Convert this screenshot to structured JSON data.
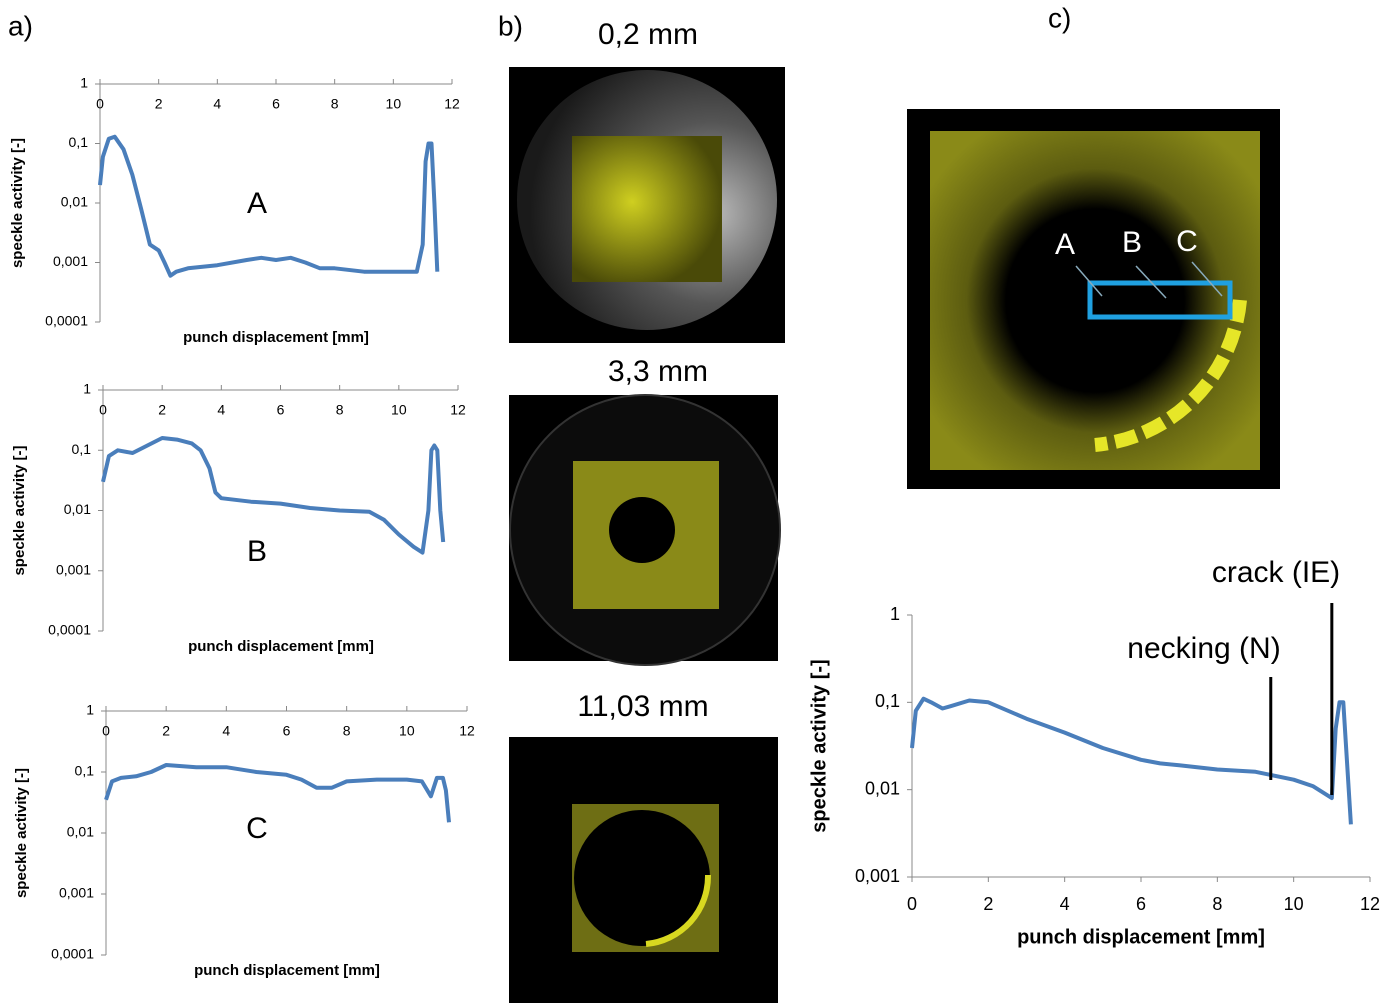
{
  "panel_labels": [
    "a)",
    "b)",
    "c)"
  ],
  "images": [
    {
      "title": "0,2 mm"
    },
    {
      "title": "3,3 mm"
    },
    {
      "title": "11,03 mm"
    }
  ],
  "overlay": {
    "labels": [
      "A",
      "B",
      "C"
    ]
  },
  "chart_data": [
    {
      "type": "line",
      "log_y": true,
      "xaxis_position": "top",
      "annotation": "A",
      "xlabel": "punch displacement [mm]",
      "ylabel": "speckle activity [-]",
      "x": [
        0,
        0.1,
        0.3,
        0.5,
        0.8,
        1.1,
        1.4,
        1.7,
        2.0,
        2.2,
        2.4,
        2.6,
        3,
        4,
        5,
        5.5,
        6,
        6.5,
        7,
        7.5,
        8,
        9,
        10,
        10.8,
        11,
        11.1,
        11.2,
        11.3,
        11.4,
        11.5
      ],
      "series": [
        {
          "color": "#4a7ebb",
          "values": [
            0.02,
            0.06,
            0.12,
            0.13,
            0.08,
            0.03,
            0.008,
            0.002,
            0.0016,
            0.001,
            0.0006,
            0.0007,
            0.0008,
            0.0009,
            0.0011,
            0.0012,
            0.0011,
            0.0012,
            0.001,
            0.0008,
            0.0008,
            0.0007,
            0.0007,
            0.0007,
            0.002,
            0.05,
            0.1,
            0.1,
            0.01,
            0.0007
          ]
        }
      ],
      "xlim": [
        0,
        12
      ],
      "xticks": [
        0,
        2,
        4,
        6,
        8,
        10,
        12
      ],
      "ylim": [
        0.0001,
        1
      ],
      "yticks": [
        {
          "value": 0.0001,
          "label": "0,0001"
        },
        {
          "value": 0.001,
          "label": "0,001"
        },
        {
          "value": 0.01,
          "label": "0,01"
        },
        {
          "value": 0.1,
          "label": "0,1"
        },
        1
      ]
    },
    {
      "type": "line",
      "log_y": true,
      "xaxis_position": "top",
      "annotation": "B",
      "xlabel": "punch displacement [mm]",
      "ylabel": "speckle activity [-]",
      "x": [
        0,
        0.2,
        0.5,
        1,
        1.5,
        2,
        2.5,
        3,
        3.3,
        3.6,
        3.8,
        4,
        5,
        6,
        7,
        8,
        9,
        9.5,
        10,
        10.5,
        10.8,
        11,
        11.1,
        11.2,
        11.3,
        11.4,
        11.5
      ],
      "series": [
        {
          "color": "#4a7ebb",
          "values": [
            0.03,
            0.08,
            0.1,
            0.09,
            0.12,
            0.16,
            0.15,
            0.13,
            0.1,
            0.05,
            0.02,
            0.016,
            0.014,
            0.013,
            0.011,
            0.01,
            0.0095,
            0.007,
            0.004,
            0.0025,
            0.002,
            0.01,
            0.1,
            0.12,
            0.1,
            0.01,
            0.003
          ]
        }
      ],
      "xlim": [
        0,
        12
      ],
      "xticks": [
        0,
        2,
        4,
        6,
        8,
        10,
        12
      ],
      "ylim": [
        0.0001,
        1
      ],
      "yticks": [
        {
          "value": 0.0001,
          "label": "0,0001"
        },
        {
          "value": 0.001,
          "label": "0,001"
        },
        {
          "value": 0.01,
          "label": "0,01"
        },
        {
          "value": 0.1,
          "label": "0,1"
        },
        1
      ]
    },
    {
      "type": "line",
      "log_y": true,
      "xaxis_position": "top",
      "annotation": "C",
      "xlabel": "punch displacement [mm]",
      "ylabel": "speckle activity [-]",
      "x": [
        0,
        0.2,
        0.5,
        1,
        1.5,
        2,
        3,
        4,
        5,
        6,
        6.5,
        7,
        7.5,
        8,
        9,
        10,
        10.5,
        10.8,
        11,
        11.2,
        11.3,
        11.4
      ],
      "series": [
        {
          "color": "#4a7ebb",
          "values": [
            0.035,
            0.07,
            0.08,
            0.085,
            0.1,
            0.13,
            0.12,
            0.12,
            0.1,
            0.09,
            0.075,
            0.055,
            0.055,
            0.07,
            0.075,
            0.075,
            0.07,
            0.04,
            0.08,
            0.08,
            0.05,
            0.015
          ]
        }
      ],
      "xlim": [
        0,
        12
      ],
      "xticks": [
        0,
        2,
        4,
        6,
        8,
        10,
        12
      ],
      "ylim": [
        0.0001,
        1
      ],
      "yticks": [
        {
          "value": 0.0001,
          "label": "0,0001"
        },
        {
          "value": 0.001,
          "label": "0,001"
        },
        {
          "value": 0.01,
          "label": "0,01"
        },
        {
          "value": 0.1,
          "label": "0,1"
        },
        1
      ]
    },
    {
      "type": "line",
      "log_y": true,
      "xaxis_position": "bottom",
      "xlabel": "punch displacement [mm]",
      "ylabel": "speckle activity [-]",
      "annotations": [
        {
          "text": "necking (N)",
          "x": 9.4
        },
        {
          "text": "crack (IE)",
          "x": 11
        }
      ],
      "x": [
        0,
        0.1,
        0.3,
        0.5,
        0.8,
        1,
        1.5,
        2,
        3,
        4,
        5,
        6,
        6.5,
        7,
        8,
        9,
        10,
        10.5,
        11,
        11.1,
        11.2,
        11.3,
        11.4,
        11.5
      ],
      "series": [
        {
          "color": "#4a7ebb",
          "values": [
            0.03,
            0.08,
            0.11,
            0.1,
            0.085,
            0.09,
            0.105,
            0.1,
            0.065,
            0.045,
            0.03,
            0.022,
            0.02,
            0.019,
            0.017,
            0.016,
            0.013,
            0.011,
            0.008,
            0.05,
            0.1,
            0.1,
            0.02,
            0.004
          ]
        }
      ],
      "xlim": [
        0,
        12
      ],
      "xticks": [
        0,
        2,
        4,
        6,
        8,
        10,
        12
      ],
      "ylim": [
        0.001,
        1
      ],
      "yticks": [
        {
          "value": 0.001,
          "label": "0,001"
        },
        {
          "value": 0.01,
          "label": "0,01"
        },
        {
          "value": 0.1,
          "label": "0,1"
        },
        1
      ]
    }
  ]
}
